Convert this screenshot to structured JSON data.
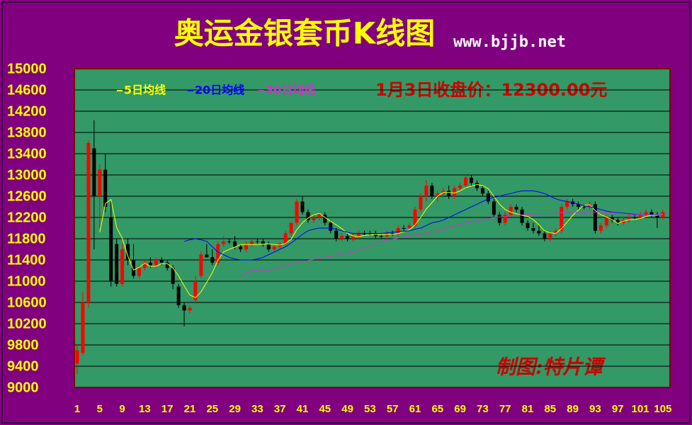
{
  "chart_data": {
    "type": "candlestick",
    "title": "奥运金银套币K线图",
    "subtitle": "www.bjjb.net",
    "annotation": "1月3日收盘价：12300.00元",
    "credit": "制图:特片谭",
    "up_color": "#ff0000",
    "down_color": "#000000",
    "plot_color": "#339966",
    "background": "#800080",
    "grid": true,
    "ylim": [
      9000,
      15000
    ],
    "yticks": [
      9000,
      9400,
      9800,
      10200,
      10600,
      11000,
      11400,
      11800,
      12200,
      12600,
      13000,
      13400,
      13800,
      14200,
      14600,
      15000
    ],
    "categories": [
      1,
      null,
      null,
      null,
      5,
      null,
      null,
      null,
      9,
      null,
      null,
      null,
      13,
      null,
      null,
      null,
      17,
      null,
      null,
      null,
      21,
      null,
      null,
      null,
      25,
      null,
      null,
      null,
      29,
      null,
      null,
      null,
      33,
      null,
      null,
      null,
      37,
      null,
      null,
      null,
      41,
      null,
      null,
      null,
      45,
      null,
      null,
      null,
      49,
      null,
      null,
      null,
      53,
      null,
      null,
      null,
      57,
      null,
      null,
      null,
      61,
      null,
      null,
      null,
      65,
      null,
      null,
      null,
      69,
      null,
      null,
      null,
      73,
      null,
      null,
      null,
      77,
      null,
      null,
      null,
      81,
      null,
      null,
      null,
      85,
      null,
      null,
      null,
      89,
      null,
      null,
      null,
      93,
      null,
      null,
      null,
      97,
      null,
      null,
      null,
      101,
      null,
      null,
      null,
      105
    ],
    "open": [
      9450,
      9650,
      10600,
      13500,
      12600,
      13100,
      12200,
      11700,
      10950,
      11700,
      11400,
      11100,
      11250,
      11350,
      11300,
      11400,
      11350,
      11250,
      10900,
      10550,
      10450,
      10650,
      11100,
      11500,
      11450,
      11350,
      11700,
      11750,
      11750,
      11650,
      11600,
      11700,
      11750,
      11750,
      11700,
      11600,
      11650,
      11700,
      11900,
      12100,
      12500,
      12300,
      12150,
      12200,
      12250,
      12100,
      11950,
      11800,
      11850,
      11800,
      11850,
      11900,
      11900,
      11900,
      11850,
      11850,
      11900,
      11900,
      12000,
      12000,
      12050,
      12350,
      12600,
      12800,
      12600,
      12650,
      12700,
      12600,
      12750,
      12800,
      12950,
      12850,
      12750,
      12650,
      12500,
      12250,
      12100,
      12250,
      12400,
      12350,
      12100,
      12000,
      11950,
      11900,
      11800,
      11900,
      11950,
      12400,
      12500,
      12450,
      12400,
      12400,
      12450,
      11950,
      12050,
      12200,
      12150,
      12100,
      12150,
      12200,
      12200,
      12250,
      12300,
      12250,
      12200
    ],
    "high": [
      9800,
      10800,
      13650,
      14030,
      13200,
      13400,
      12500,
      11800,
      11700,
      11800,
      11700,
      11300,
      11400,
      11450,
      11450,
      11450,
      11400,
      11300,
      10950,
      10600,
      10550,
      11100,
      11550,
      11700,
      11600,
      11750,
      11850,
      11800,
      11850,
      11700,
      11750,
      11800,
      11800,
      11800,
      11750,
      11700,
      11750,
      11950,
      12100,
      12550,
      12600,
      12350,
      12250,
      12300,
      12300,
      12150,
      12000,
      11900,
      11900,
      11900,
      11950,
      11950,
      11950,
      11950,
      11900,
      11950,
      11950,
      12050,
      12050,
      12100,
      12400,
      12650,
      12900,
      12850,
      12700,
      12750,
      12800,
      12800,
      12850,
      13000,
      13000,
      12900,
      12800,
      12700,
      12550,
      12300,
      12300,
      12450,
      12450,
      12400,
      12150,
      12100,
      12050,
      11950,
      11950,
      12000,
      12450,
      12550,
      12550,
      12500,
      12450,
      12500,
      12500,
      12100,
      12250,
      12250,
      12200,
      12200,
      12250,
      12250,
      12300,
      12350,
      12350,
      12300,
      12350
    ],
    "low": [
      9250,
      9600,
      10500,
      11600,
      12000,
      12300,
      10900,
      10900,
      10900,
      11300,
      11050,
      11050,
      11200,
      11250,
      11250,
      11300,
      11200,
      10850,
      10500,
      10150,
      10400,
      10600,
      11050,
      11450,
      11300,
      11300,
      11650,
      11700,
      11600,
      11550,
      11550,
      11650,
      11700,
      11650,
      11550,
      11550,
      11600,
      11650,
      11850,
      12050,
      12250,
      12100,
      12100,
      12150,
      12050,
      11900,
      11750,
      11750,
      11750,
      11750,
      11800,
      11850,
      11850,
      11800,
      11800,
      11800,
      11850,
      11850,
      11950,
      11950,
      12000,
      12300,
      12500,
      12550,
      12500,
      12600,
      12550,
      12550,
      12700,
      12750,
      12800,
      12700,
      12600,
      12450,
      12200,
      12050,
      12050,
      12200,
      12300,
      12050,
      11950,
      11900,
      11850,
      11750,
      11750,
      11850,
      11900,
      12350,
      12400,
      12350,
      12350,
      12350,
      11900,
      11900,
      12000,
      12100,
      12050,
      12050,
      12100,
      12150,
      12150,
      12200,
      12200,
      12000,
      12150
    ],
    "close": [
      9700,
      10600,
      13600,
      12600,
      13100,
      12400,
      11000,
      10950,
      11600,
      11400,
      11100,
      11250,
      11350,
      11300,
      11400,
      11350,
      11250,
      10950,
      10550,
      10450,
      10500,
      11000,
      11500,
      11450,
      11350,
      11700,
      11750,
      11750,
      11650,
      11600,
      11700,
      11750,
      11750,
      11700,
      11600,
      11650,
      11700,
      11900,
      12100,
      12500,
      12300,
      12150,
      12200,
      12250,
      12100,
      11950,
      11800,
      11850,
      11800,
      11850,
      11900,
      11900,
      11900,
      11850,
      11850,
      11900,
      11900,
      12000,
      12000,
      12050,
      12350,
      12600,
      12800,
      12600,
      12650,
      12700,
      12600,
      12750,
      12800,
      12950,
      12850,
      12750,
      12650,
      12500,
      12250,
      12100,
      12250,
      12400,
      12350,
      12100,
      12000,
      11950,
      11900,
      11800,
      11900,
      11950,
      12400,
      12500,
      12450,
      12400,
      12400,
      12450,
      11950,
      12050,
      12200,
      12150,
      12100,
      12150,
      12200,
      12200,
      12250,
      12300,
      12250,
      12200,
      12300
    ],
    "series": [
      {
        "name": "5日均线",
        "color": "#ffff00",
        "values": [
          null,
          null,
          null,
          null,
          11920,
          12460,
          12540,
          12010,
          11810,
          11470,
          11210,
          11260,
          11340,
          11280,
          11280,
          11330,
          11330,
          11250,
          11100,
          10910,
          10740,
          10690,
          10800,
          10980,
          11160,
          11400,
          11550,
          11600,
          11640,
          11690,
          11690,
          11690,
          11690,
          11700,
          11700,
          11690,
          11680,
          11710,
          11790,
          11970,
          12100,
          12190,
          12250,
          12280,
          12200,
          12130,
          12060,
          11990,
          11900,
          11850,
          11840,
          11860,
          11870,
          11880,
          11880,
          11880,
          11880,
          11900,
          11930,
          11970,
          12060,
          12200,
          12360,
          12480,
          12600,
          12670,
          12670,
          12660,
          12700,
          12760,
          12790,
          12820,
          12800,
          12740,
          12600,
          12450,
          12350,
          12300,
          12270,
          12240,
          12220,
          12160,
          12060,
          11950,
          11910,
          11900,
          11990,
          12110,
          12240,
          12340,
          12430,
          12440,
          12330,
          12250,
          12210,
          12160,
          12090,
          12130,
          12160,
          12160,
          12180,
          12220,
          12240,
          12240,
          12260
        ]
      },
      {
        "name": "20日均线",
        "color": "#0000ff",
        "values": [
          null,
          null,
          null,
          null,
          null,
          null,
          null,
          null,
          null,
          null,
          null,
          null,
          null,
          null,
          null,
          null,
          null,
          null,
          null,
          11750,
          11780,
          11800,
          11780,
          11750,
          11650,
          11550,
          11500,
          11450,
          11420,
          11400,
          11400,
          11400,
          11420,
          11450,
          11500,
          11550,
          11600,
          11650,
          11720,
          11800,
          11880,
          11950,
          11980,
          12000,
          12000,
          12000,
          11980,
          11950,
          11920,
          11900,
          11900,
          11900,
          11900,
          11900,
          11900,
          11910,
          11920,
          11930,
          11940,
          11950,
          11980,
          12000,
          12050,
          12100,
          12120,
          12150,
          12200,
          12250,
          12300,
          12350,
          12400,
          12450,
          12500,
          12550,
          12580,
          12600,
          12630,
          12650,
          12680,
          12700,
          12700,
          12700,
          12680,
          12650,
          12600,
          12550,
          12520,
          12500,
          12480,
          12450,
          12420,
          12400,
          12380,
          12350,
          12320,
          12300,
          12290,
          12280,
          12270,
          12260,
          12250,
          12250,
          12250,
          12250,
          12250
        ]
      },
      {
        "name": "30日均线",
        "color": "#cc33cc",
        "values": [
          null,
          null,
          null,
          null,
          null,
          null,
          null,
          null,
          null,
          null,
          null,
          null,
          null,
          null,
          null,
          null,
          null,
          null,
          null,
          null,
          null,
          null,
          null,
          null,
          null,
          null,
          null,
          null,
          null,
          11100,
          11150,
          11200,
          11200,
          11200,
          11200,
          11230,
          11260,
          11290,
          11320,
          11350,
          11370,
          11390,
          11410,
          11430,
          11450,
          11470,
          11490,
          11510,
          11530,
          11550,
          11590,
          11630,
          11670,
          11710,
          11750,
          11770,
          11790,
          11810,
          11830,
          11850,
          11870,
          11890,
          11910,
          11930,
          11950,
          11980,
          12010,
          12040,
          12070,
          12100,
          12120,
          12140,
          12160,
          12180,
          12200,
          12210,
          12220,
          12230,
          12240,
          12250,
          12260,
          12260,
          12270,
          12270,
          12280,
          12280,
          12290,
          12290,
          12300,
          12300,
          12300,
          12300,
          12300,
          12300,
          12300,
          12290,
          12280,
          12270,
          12260,
          12250,
          12250,
          12250,
          12250,
          12250,
          12250
        ]
      }
    ]
  }
}
